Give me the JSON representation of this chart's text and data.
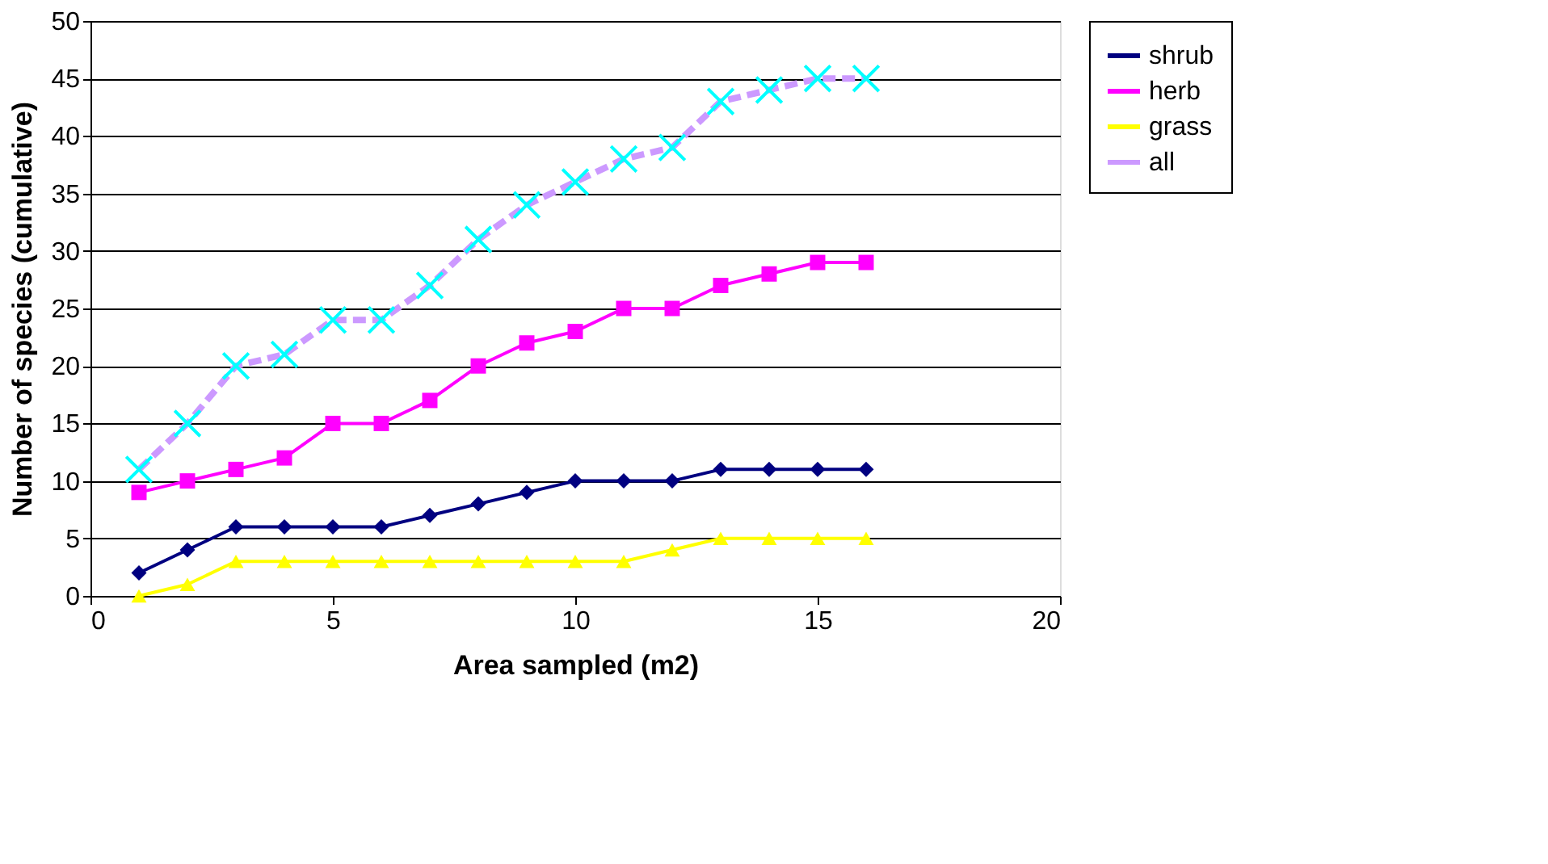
{
  "chart_data": {
    "type": "line",
    "xlabel": "Area sampled (m2)",
    "ylabel": "Number of species (cumulative)",
    "x": [
      1,
      2,
      3,
      4,
      5,
      6,
      7,
      8,
      9,
      10,
      11,
      12,
      13,
      14,
      15,
      16
    ],
    "xlim": [
      0,
      20
    ],
    "xticks": [
      0,
      5,
      10,
      15,
      20
    ],
    "ylim": [
      0,
      50
    ],
    "yticks": [
      0,
      5,
      10,
      15,
      20,
      25,
      30,
      35,
      40,
      45,
      50
    ],
    "grid": "y",
    "legend": "right",
    "series": [
      {
        "name": "shrub",
        "color": "#000080",
        "marker": "diamond",
        "line_style": "solid",
        "values": [
          2,
          4,
          6,
          6,
          6,
          6,
          7,
          8,
          9,
          10,
          10,
          10,
          11,
          11,
          11,
          11
        ]
      },
      {
        "name": "herb",
        "color": "#ff00ff",
        "marker": "square",
        "line_style": "solid",
        "values": [
          9,
          10,
          11,
          12,
          15,
          15,
          17,
          20,
          22,
          23,
          25,
          25,
          27,
          28,
          29,
          29
        ]
      },
      {
        "name": "grass",
        "color": "#ffff00",
        "marker": "triangle",
        "line_style": "solid",
        "values": [
          0,
          1,
          3,
          3,
          3,
          3,
          3,
          3,
          3,
          3,
          3,
          4,
          5,
          5,
          5,
          5
        ]
      },
      {
        "name": "all",
        "color": "#cc99ff",
        "colors": [
          "#00ffff",
          "#00ffff",
          "#00ffff",
          "#00ffff",
          "#00ffff",
          "#00ffff",
          "#00ffff",
          "#00ffff",
          "#00ffff",
          "#00ffff",
          "#00ffff",
          "#00ffff",
          "#00ffff",
          "#00ffff",
          "#00ffff",
          "#00ffff"
        ],
        "marker": "cross",
        "line_style": "dashed",
        "values": [
          11,
          15,
          20,
          21,
          24,
          24,
          27,
          31,
          34,
          36,
          38,
          39,
          43,
          44,
          45,
          45
        ]
      }
    ]
  }
}
